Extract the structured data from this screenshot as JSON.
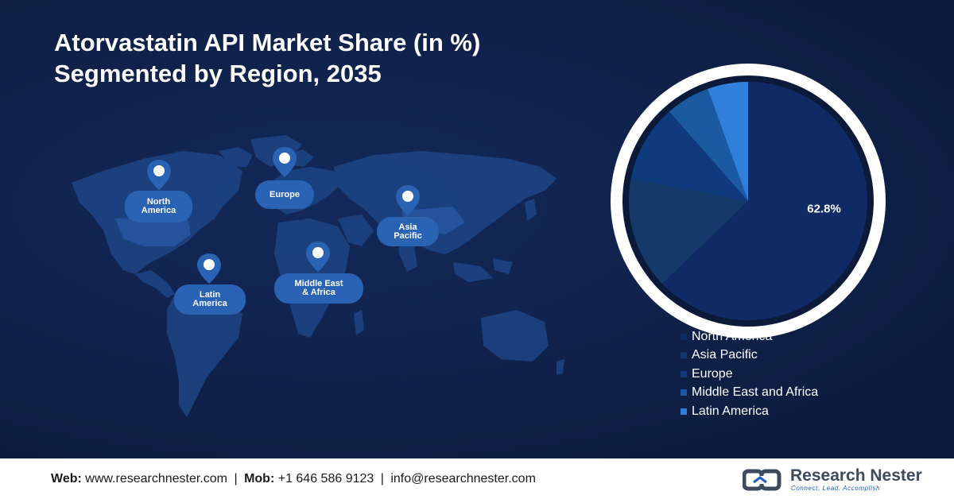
{
  "title": {
    "line1": "Atorvastatin API Market Share (in %)",
    "line2": "Segmented by Region, 2035"
  },
  "map": {
    "regions": [
      {
        "key": "north-america",
        "label": "North\nAmerica"
      },
      {
        "key": "europe",
        "label": "Europe"
      },
      {
        "key": "asia-pacific",
        "label": "Asia\nPacific"
      },
      {
        "key": "latin-america",
        "label": "Latin\nAmerica"
      },
      {
        "key": "middle-east-africa",
        "label": "Middle East\n& Africa"
      }
    ]
  },
  "chart_data": {
    "type": "pie",
    "title": "Atorvastatin API Market Share (in %) Segmented by Region, 2035",
    "slices": [
      {
        "label": "North America",
        "value": 62.8,
        "color": "#0f2a65",
        "data_label": "62.8%"
      },
      {
        "label": "Asia Pacific",
        "value": 15.2,
        "color": "#153a6a",
        "data_label": ""
      },
      {
        "label": "Europe",
        "value": 10.5,
        "color": "#0f3b7e",
        "data_label": ""
      },
      {
        "label": "Middle East and Africa",
        "value": 6.0,
        "color": "#1b5aa0",
        "data_label": ""
      },
      {
        "label": "Latin America",
        "value": 5.5,
        "color": "#2f7fdb",
        "data_label": ""
      }
    ],
    "legend_position": "bottom-right"
  },
  "footer": {
    "web_label": "Web:",
    "web_value": "www.researchnester.com",
    "mob_label": "Mob:",
    "mob_value": "+1 646 586 9123",
    "email_value": "info@researchnester.com",
    "separator": "|",
    "logo_name": "Research Nester",
    "logo_tagline": "Connect. Lead. Accomplish"
  },
  "colors": {
    "background": "#0e1f45",
    "accent": "#2a63b4",
    "pie_ring": "#ffffff"
  }
}
